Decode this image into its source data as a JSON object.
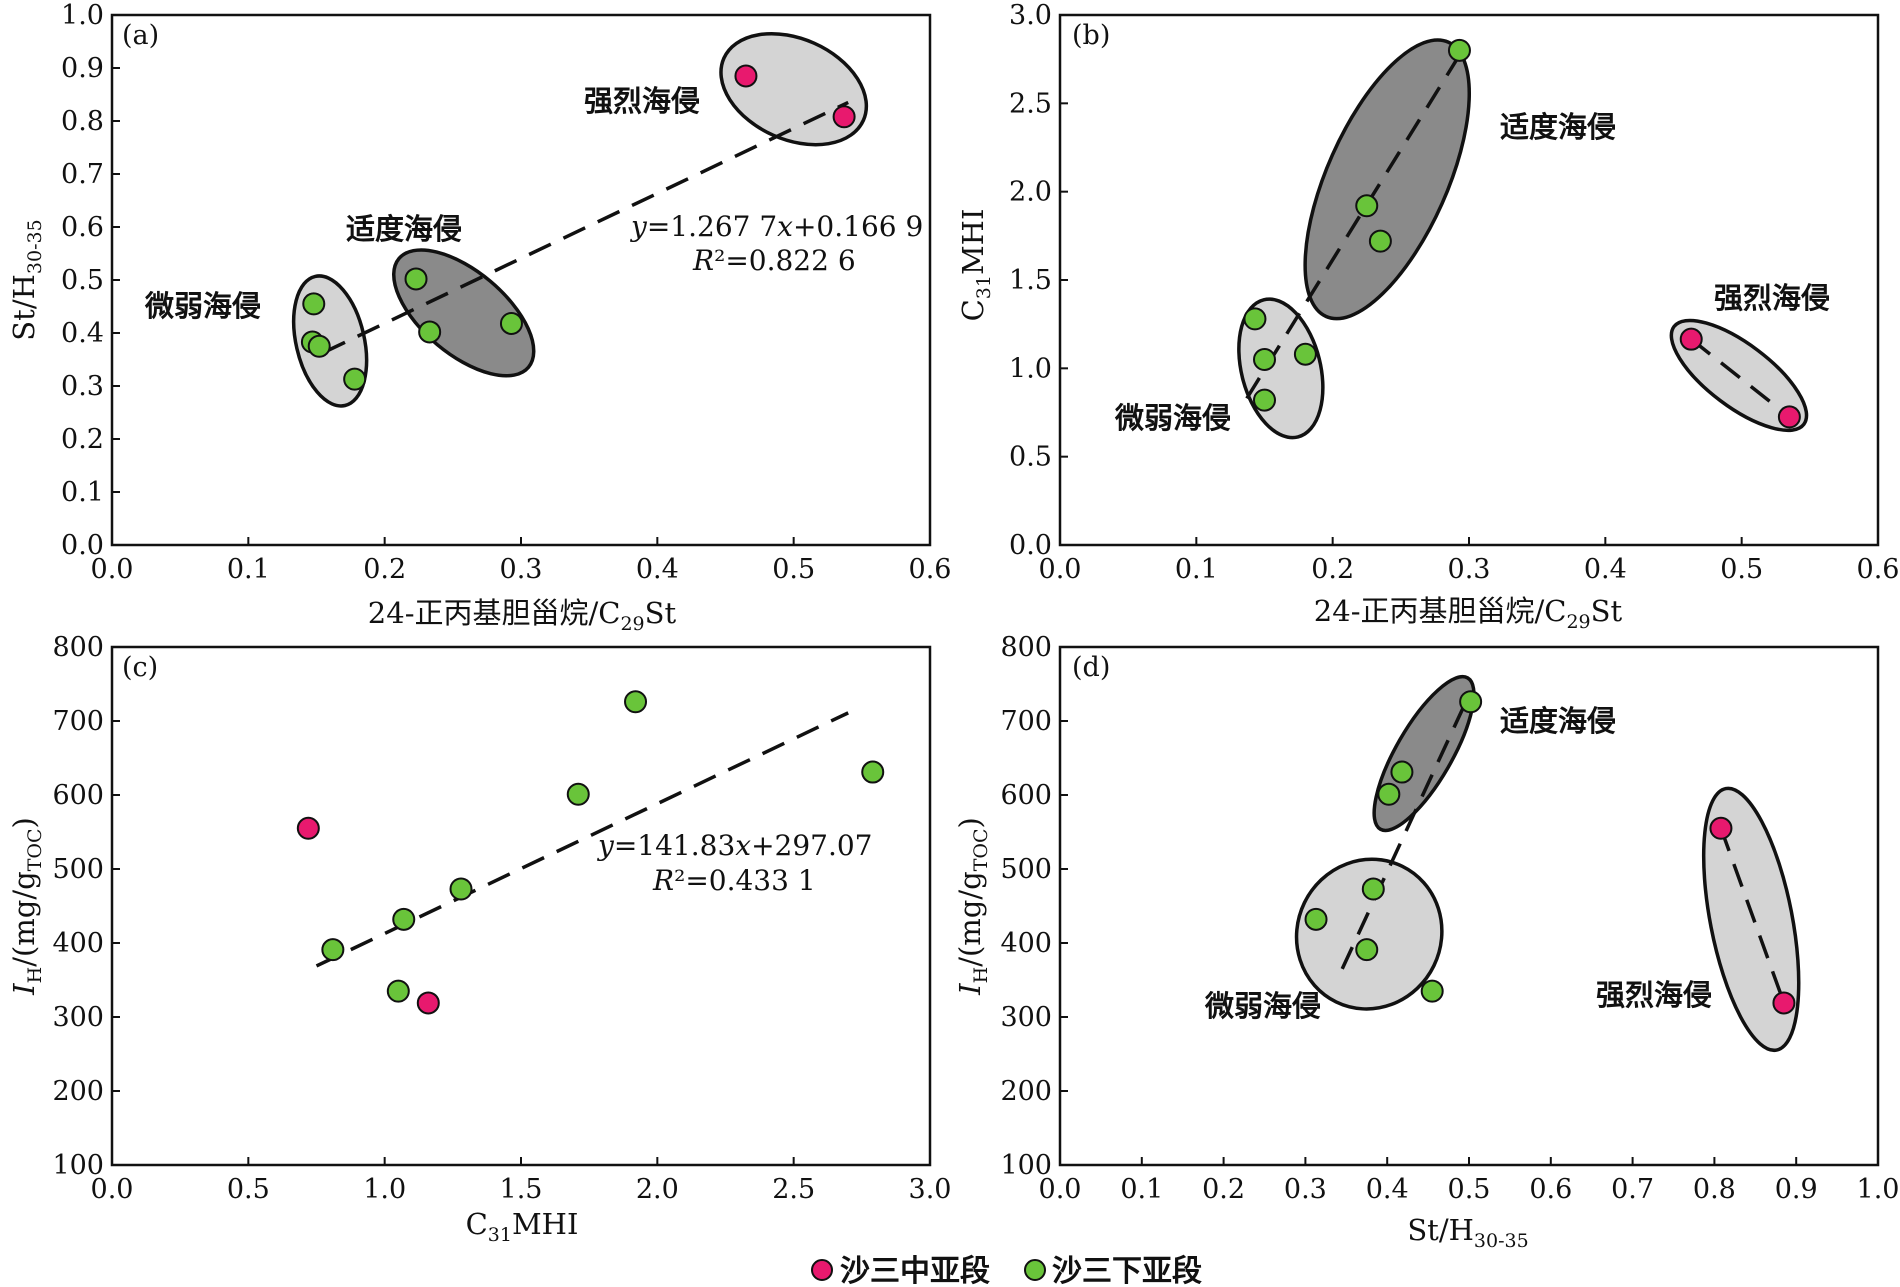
{
  "colors": {
    "middle": "#e8196e",
    "lower": "#69c43a",
    "ellipse_light": "#d4d4d4",
    "ellipse_dark": "#8a8a8a"
  },
  "legend": [
    {
      "label": "沙三中亚段",
      "color": "#e8196e"
    },
    {
      "label": "沙三下亚段",
      "color": "#69c43a"
    }
  ],
  "chart_data": [
    {
      "panel": "(a)",
      "type": "scatter",
      "xlabel": "24-正丙基胆甾烷/C29St",
      "ylabel": "St/H30-35",
      "xlim": [
        0,
        0.6
      ],
      "ylim": [
        0,
        1.0
      ],
      "xticks": [
        "0.0",
        "0.1",
        "0.2",
        "0.3",
        "0.4",
        "0.5",
        "0.6"
      ],
      "yticks": [
        "0.0",
        "0.1",
        "0.2",
        "0.3",
        "0.4",
        "0.5",
        "0.6",
        "0.7",
        "0.8",
        "0.9",
        "1.0"
      ],
      "series": [
        {
          "name": "沙三中亚段",
          "color": "middle",
          "points": [
            [
              0.465,
              0.885
            ],
            [
              0.537,
              0.808
            ]
          ]
        },
        {
          "name": "沙三下亚段",
          "color": "lower",
          "points": [
            [
              0.147,
              0.383
            ],
            [
              0.148,
              0.455
            ],
            [
              0.152,
              0.375
            ],
            [
              0.178,
              0.313
            ],
            [
              0.223,
              0.502
            ],
            [
              0.233,
              0.402
            ],
            [
              0.293,
              0.418
            ]
          ]
        }
      ],
      "trendline": {
        "x": [
          0.155,
          0.54
        ],
        "y": [
          0.363,
          0.835
        ]
      },
      "equation": "y=1.267 7x+0.166 9",
      "r2": "R²=0.822 6",
      "groups": [
        {
          "label": "微弱海侵",
          "shade": "light",
          "cx": 0.16,
          "cy": 0.385,
          "rx": 0.025,
          "ry": 0.125,
          "rot": -13
        },
        {
          "label": "适度海侵",
          "shade": "dark",
          "cx": 0.258,
          "cy": 0.438,
          "rx": 0.062,
          "ry": 0.078,
          "rot": 40
        },
        {
          "label": "强烈海侵",
          "shade": "light",
          "cx": 0.5,
          "cy": 0.86,
          "rx": 0.056,
          "ry": 0.095,
          "rot": 24
        }
      ]
    },
    {
      "panel": "(b)",
      "type": "scatter",
      "xlabel": "24-正丙基胆甾烷/C29St",
      "ylabel": "C31MHI",
      "xlim": [
        0,
        0.6
      ],
      "ylim": [
        0,
        3.0
      ],
      "xticks": [
        "0.0",
        "0.1",
        "0.2",
        "0.3",
        "0.4",
        "0.5",
        "0.6"
      ],
      "yticks": [
        "0.0",
        "0.5",
        "1.0",
        "1.5",
        "2.0",
        "2.5",
        "3.0"
      ],
      "series": [
        {
          "name": "沙三中亚段",
          "color": "middle",
          "points": [
            [
              0.463,
              1.165
            ],
            [
              0.535,
              0.725
            ]
          ]
        },
        {
          "name": "沙三下亚段",
          "color": "lower",
          "points": [
            [
              0.143,
              1.28
            ],
            [
              0.15,
              1.05
            ],
            [
              0.15,
              0.82
            ],
            [
              0.18,
              1.08
            ],
            [
              0.225,
              1.92
            ],
            [
              0.235,
              1.72
            ],
            [
              0.293,
              2.8
            ]
          ]
        }
      ],
      "trendlines": [
        {
          "x": [
            0.137,
            0.296
          ],
          "y": [
            0.83,
            2.81
          ]
        },
        {
          "x": [
            0.463,
            0.535
          ],
          "y": [
            1.165,
            0.725
          ]
        }
      ],
      "groups": [
        {
          "label": "微弱海侵",
          "shade": "light",
          "cx": 0.162,
          "cy": 1.0,
          "rx": 0.029,
          "ry": 0.4,
          "rot": -14
        },
        {
          "label": "适度海侵",
          "shade": "dark",
          "cx": 0.24,
          "cy": 2.07,
          "rx": 0.044,
          "ry": 0.85,
          "rot": 24
        },
        {
          "label": "强烈海侵",
          "shade": "light",
          "cx": 0.498,
          "cy": 0.96,
          "rx": 0.023,
          "ry": 0.46,
          "rot": -53
        }
      ]
    },
    {
      "panel": "(c)",
      "type": "scatter",
      "xlabel": "C31MHI",
      "ylabel": "IH/(mg/gTOC)",
      "xlim": [
        0,
        3.0
      ],
      "ylim": [
        100,
        800
      ],
      "xticks": [
        "0.0",
        "0.5",
        "1.0",
        "1.5",
        "2.0",
        "2.5",
        "3.0"
      ],
      "yticks": [
        "100",
        "200",
        "300",
        "400",
        "500",
        "600",
        "700",
        "800"
      ],
      "series": [
        {
          "name": "沙三中亚段",
          "color": "middle",
          "points": [
            [
              0.72,
              555
            ],
            [
              1.16,
              319
            ]
          ]
        },
        {
          "name": "沙三下亚段",
          "color": "lower",
          "points": [
            [
              0.81,
              391
            ],
            [
              1.05,
              335
            ],
            [
              1.07,
              432
            ],
            [
              1.28,
              473
            ],
            [
              1.71,
              601
            ],
            [
              1.92,
              726
            ],
            [
              2.79,
              631
            ]
          ]
        }
      ],
      "trendline": {
        "x": [
          0.75,
          2.7
        ],
        "y": [
          369,
          711
        ]
      },
      "equation": "y=141.83x+297.07",
      "r2": "R²=0.433 1"
    },
    {
      "panel": "(d)",
      "type": "scatter",
      "xlabel": "St/H30-35",
      "ylabel": "IH/(mg/gTOC)",
      "xlim": [
        0,
        1.0
      ],
      "ylim": [
        100,
        800
      ],
      "xticks": [
        "0.0",
        "0.1",
        "0.2",
        "0.3",
        "0.4",
        "0.5",
        "0.6",
        "0.7",
        "0.8",
        "0.9",
        "1.0"
      ],
      "yticks": [
        "100",
        "200",
        "300",
        "400",
        "500",
        "600",
        "700",
        "800"
      ],
      "series": [
        {
          "name": "沙三中亚段",
          "color": "middle",
          "points": [
            [
              0.808,
              555
            ],
            [
              0.885,
              319
            ]
          ]
        },
        {
          "name": "沙三下亚段",
          "color": "lower",
          "points": [
            [
              0.313,
              432
            ],
            [
              0.375,
              391
            ],
            [
              0.383,
              473
            ],
            [
              0.402,
              601
            ],
            [
              0.418,
              631
            ],
            [
              0.455,
              335
            ],
            [
              0.502,
              726
            ]
          ]
        }
      ],
      "trendlines": [
        {
          "x": [
            0.345,
            0.5
          ],
          "y": [
            365,
            735
          ]
        },
        {
          "x": [
            0.808,
            0.885
          ],
          "y": [
            555,
            319
          ]
        }
      ],
      "groups": [
        {
          "label": "微弱海侵",
          "shade": "light",
          "cx": 0.378,
          "cy": 412,
          "rx": 0.088,
          "ry": 102,
          "rot": 26
        },
        {
          "label": "适度海侵",
          "shade": "dark",
          "cx": 0.445,
          "cy": 656,
          "rx": 0.034,
          "ry": 118,
          "rot": 30
        },
        {
          "label": "强烈海侵",
          "shade": "light",
          "cx": 0.845,
          "cy": 432,
          "rx": 0.05,
          "ry": 180,
          "rot": -11
        }
      ]
    }
  ]
}
